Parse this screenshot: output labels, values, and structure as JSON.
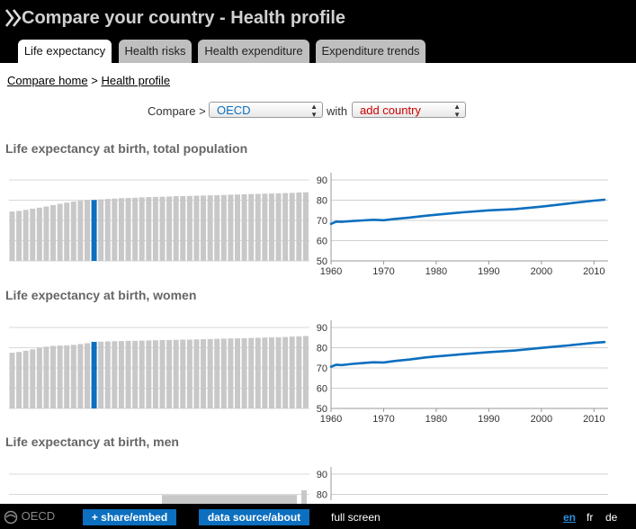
{
  "header": {
    "title": "Compare your country - Health profile",
    "tabs": [
      {
        "label": "Life expectancy",
        "active": true
      },
      {
        "label": "Health risks",
        "active": false
      },
      {
        "label": "Health expenditure",
        "active": false
      },
      {
        "label": "Expenditure trends",
        "active": false
      }
    ]
  },
  "breadcrumb": {
    "home": "Compare home",
    "separator": ">",
    "current": "Health profile"
  },
  "compare": {
    "label": "Compare >",
    "selected_country": "OECD",
    "with_label": "with",
    "add_country": "add country"
  },
  "colors": {
    "highlight": "#0c6fbf",
    "bar": "#c8c8c8",
    "add_country": "#cc0000",
    "header_bg": "#000000"
  },
  "chart_data": [
    {
      "title": "Life expectancy at birth, total population",
      "type": "bar+line",
      "bars": {
        "count": 44,
        "highlight_index": 12,
        "values": [
          74.4,
          74.7,
          75.2,
          75.8,
          76.3,
          76.9,
          77.6,
          78.2,
          78.8,
          79.3,
          79.7,
          80.1,
          80.1,
          80.4,
          80.6,
          80.8,
          81.0,
          81.1,
          81.2,
          81.4,
          81.5,
          81.6,
          81.7,
          81.8,
          82.0,
          82.0,
          82.1,
          82.2,
          82.3,
          82.4,
          82.5,
          82.6,
          82.7,
          82.8,
          82.9,
          83.0,
          83.1,
          83.2,
          83.3,
          83.4,
          83.5,
          83.6,
          83.8,
          83.9
        ]
      },
      "line": {
        "x": [
          1960,
          1961,
          1962,
          1964,
          1966,
          1968,
          1970,
          1972,
          1975,
          1978,
          1980,
          1985,
          1990,
          1995,
          2000,
          2003,
          2005,
          2010,
          2012
        ],
        "y": [
          68.3,
          69.4,
          69.3,
          69.7,
          70.0,
          70.3,
          70.1,
          70.7,
          71.4,
          72.3,
          72.8,
          74.0,
          75.0,
          75.6,
          76.8,
          77.7,
          78.3,
          79.8,
          80.2
        ]
      },
      "y_ticks": [
        50,
        60,
        70,
        80,
        90
      ],
      "x_ticks": [
        1960,
        1970,
        1980,
        1990,
        2000,
        2010
      ],
      "xlim": [
        1960,
        2012
      ],
      "ylim": [
        50,
        90
      ]
    },
    {
      "title": "Life expectancy at birth, women",
      "type": "bar+line",
      "bars": {
        "count": 44,
        "highlight_index": 12,
        "values": [
          77.5,
          77.9,
          78.5,
          79.2,
          80.0,
          80.5,
          80.9,
          81.1,
          81.2,
          81.4,
          81.8,
          82.2,
          82.9,
          83.0,
          83.1,
          83.2,
          83.3,
          83.4,
          83.4,
          83.5,
          83.6,
          83.7,
          83.8,
          83.8,
          83.9,
          84.0,
          84.0,
          84.1,
          84.2,
          84.3,
          84.4,
          84.5,
          84.6,
          84.6,
          84.7,
          84.8,
          84.9,
          85.0,
          85.1,
          85.2,
          85.3,
          85.5,
          85.6,
          85.8
        ]
      },
      "line": {
        "x": [
          1960,
          1961,
          1962,
          1964,
          1966,
          1968,
          1970,
          1972,
          1975,
          1978,
          1980,
          1985,
          1990,
          1995,
          2000,
          2003,
          2005,
          2010,
          2012
        ],
        "y": [
          70.6,
          71.6,
          71.4,
          72.0,
          72.4,
          72.8,
          72.7,
          73.4,
          74.2,
          75.2,
          75.7,
          76.8,
          77.8,
          78.6,
          79.9,
          80.6,
          81.1,
          82.4,
          82.8
        ]
      },
      "y_ticks": [
        50,
        60,
        70,
        80,
        90
      ],
      "x_ticks": [
        1960,
        1970,
        1980,
        1990,
        2000,
        2010
      ],
      "xlim": [
        1960,
        2012
      ],
      "ylim": [
        50,
        90
      ]
    },
    {
      "title": "Life expectancy at birth, men",
      "type": "bar+line",
      "y_ticks": [
        80,
        90
      ]
    }
  ],
  "footer": {
    "logo": "OECD",
    "share": "+ share/embed",
    "data_source": "data source/about",
    "full_screen": "full screen",
    "languages": [
      {
        "code": "en",
        "active": true
      },
      {
        "code": "fr",
        "active": false
      },
      {
        "code": "de",
        "active": false
      }
    ]
  }
}
